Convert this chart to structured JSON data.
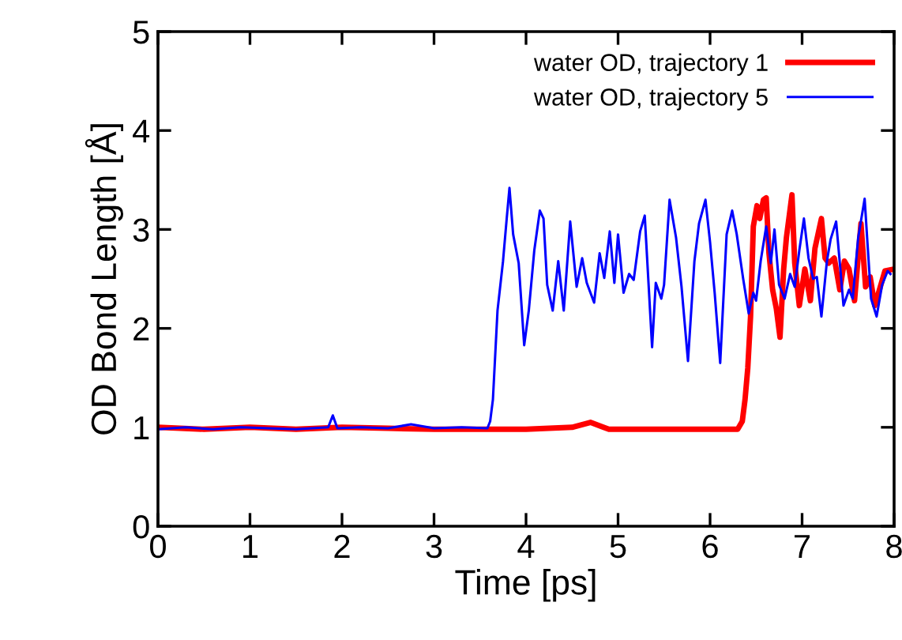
{
  "chart_data": {
    "type": "line",
    "xlabel": "Time [ps]",
    "ylabel": "OD Bond Length [Å]",
    "xlim": [
      0,
      8
    ],
    "ylim": [
      0,
      5
    ],
    "xticks": [
      0,
      1,
      2,
      3,
      4,
      5,
      6,
      7,
      8
    ],
    "yticks": [
      0,
      1,
      2,
      3,
      4,
      5
    ],
    "grid": false,
    "legend": "top right",
    "marker": "none",
    "line_style": "solid",
    "series": [
      {
        "name": "water OD, trajectory 1",
        "color": "#ff0000",
        "x": [
          0,
          0.5,
          1,
          1.5,
          2,
          2.5,
          3,
          3.5,
          4,
          4.5,
          4.7,
          4.9,
          5.5,
          6,
          6.3,
          6.35,
          6.38,
          6.41,
          6.44,
          6.47,
          6.51,
          6.54,
          6.58,
          6.61,
          6.64,
          6.68,
          6.72,
          6.76,
          6.8,
          6.83,
          6.89,
          6.92,
          6.97,
          7.03,
          7.09,
          7.14,
          7.21,
          7.25,
          7.29,
          7.35,
          7.41,
          7.46,
          7.51,
          7.57,
          7.64,
          7.69,
          7.74,
          7.79,
          7.85,
          7.9,
          8
        ],
        "values": [
          1.0,
          0.98,
          1.0,
          0.98,
          1.0,
          0.99,
          0.98,
          0.98,
          0.98,
          1.0,
          1.05,
          0.98,
          0.98,
          0.98,
          0.98,
          1.06,
          1.28,
          1.6,
          2.12,
          3.03,
          3.24,
          3.11,
          3.3,
          3.32,
          2.76,
          2.39,
          2.2,
          1.91,
          2.6,
          2.92,
          3.35,
          2.66,
          2.23,
          2.6,
          2.28,
          2.81,
          3.11,
          2.71,
          2.66,
          2.71,
          2.39,
          2.68,
          2.6,
          2.28,
          3.06,
          2.42,
          2.52,
          2.23,
          2.42,
          2.58,
          2.6
        ]
      },
      {
        "name": "water OD, trajectory 5",
        "color": "#0000ff",
        "x": [
          0,
          0.3,
          0.6,
          0.9,
          1.2,
          1.5,
          1.85,
          1.9,
          1.95,
          2.2,
          2.5,
          2.75,
          3.0,
          3.3,
          3.58,
          3.61,
          3.64,
          3.69,
          3.75,
          3.79,
          3.82,
          3.86,
          3.92,
          3.98,
          4.03,
          4.09,
          4.15,
          4.19,
          4.23,
          4.29,
          4.35,
          4.41,
          4.48,
          4.55,
          4.61,
          4.66,
          4.74,
          4.8,
          4.85,
          4.91,
          4.96,
          5.0,
          5.06,
          5.12,
          5.17,
          5.24,
          5.29,
          5.37,
          5.41,
          5.47,
          5.5,
          5.56,
          5.63,
          5.69,
          5.76,
          5.83,
          5.88,
          5.95,
          6.0,
          6.05,
          6.11,
          6.18,
          6.24,
          6.29,
          6.36,
          6.42,
          6.47,
          6.5,
          6.55,
          6.61,
          6.66,
          6.7,
          6.75,
          6.81,
          6.87,
          6.92,
          6.97,
          7.02,
          7.07,
          7.12,
          7.16,
          7.21,
          7.27,
          7.31,
          7.37,
          7.41,
          7.45,
          7.51,
          7.55,
          7.61,
          7.68,
          7.71,
          7.75,
          7.81,
          7.87,
          7.93,
          7.96
        ],
        "values": [
          0.98,
          1.0,
          0.98,
          1.0,
          0.99,
          0.98,
          1.0,
          1.12,
          0.99,
          1.0,
          0.99,
          1.03,
          0.99,
          1.0,
          0.99,
          1.06,
          1.28,
          2.18,
          2.68,
          3.11,
          3.42,
          2.95,
          2.66,
          1.83,
          2.18,
          2.79,
          3.19,
          3.11,
          2.44,
          2.18,
          2.68,
          2.18,
          3.08,
          2.42,
          2.71,
          2.46,
          2.26,
          2.76,
          2.51,
          2.98,
          2.46,
          2.95,
          2.36,
          2.55,
          2.49,
          2.98,
          3.14,
          1.81,
          2.46,
          2.3,
          2.44,
          3.3,
          2.92,
          2.42,
          1.67,
          2.68,
          3.06,
          3.3,
          2.87,
          2.36,
          1.65,
          2.95,
          3.19,
          2.95,
          2.5,
          2.15,
          2.36,
          2.28,
          2.68,
          3.03,
          2.66,
          3.0,
          2.44,
          2.3,
          2.55,
          2.42,
          2.79,
          3.11,
          2.71,
          2.5,
          2.52,
          2.12,
          2.68,
          2.9,
          3.08,
          2.66,
          2.23,
          2.39,
          2.3,
          2.92,
          3.31,
          2.87,
          2.3,
          2.12,
          2.44,
          2.58,
          2.55
        ]
      }
    ]
  }
}
